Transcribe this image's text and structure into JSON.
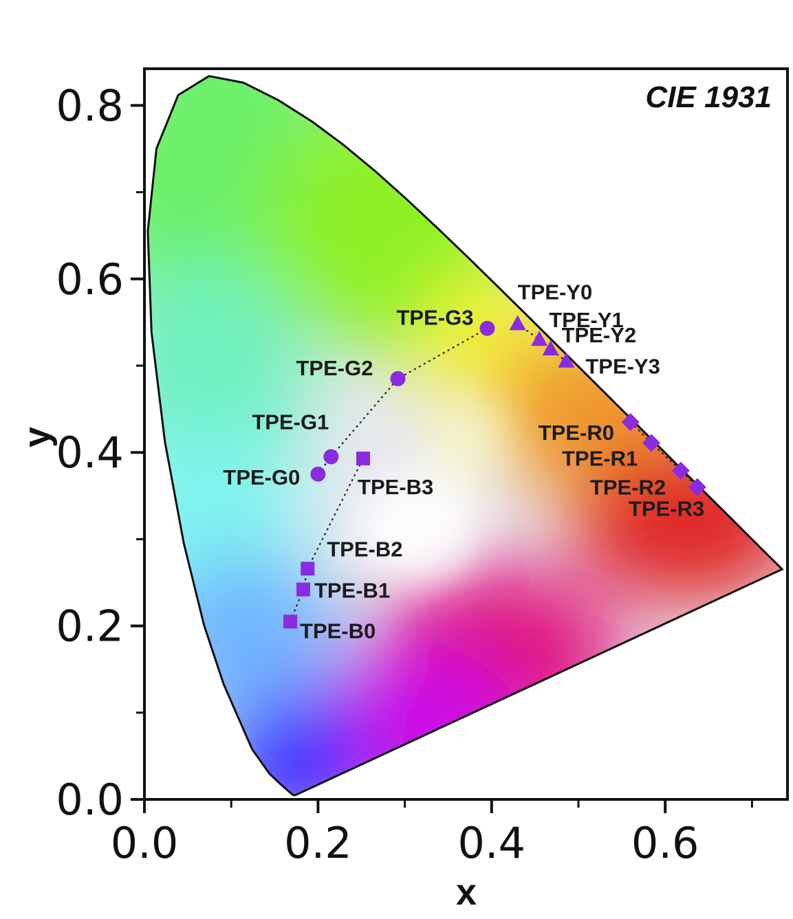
{
  "chart_data": {
    "type": "scatter",
    "title": "CIE 1931",
    "xlabel": "x",
    "ylabel": "y",
    "xlim": [
      0.0,
      0.74
    ],
    "ylim": [
      0.0,
      0.84
    ],
    "x_ticks": [
      "0.0",
      "0.2",
      "0.4",
      "0.6"
    ],
    "y_ticks": [
      "0.0",
      "0.2",
      "0.4",
      "0.6",
      "0.8"
    ],
    "grid": false,
    "marker_color": "#8a2be2",
    "series": [
      {
        "marker": "circle",
        "points": [
          {
            "label": "TPE-G0",
            "x": 0.2,
            "y": 0.375
          },
          {
            "label": "TPE-G1",
            "x": 0.215,
            "y": 0.395
          },
          {
            "label": "TPE-G2",
            "x": 0.292,
            "y": 0.485
          },
          {
            "label": "TPE-G3",
            "x": 0.395,
            "y": 0.543
          }
        ]
      },
      {
        "marker": "square",
        "points": [
          {
            "label": "TPE-B0",
            "x": 0.168,
            "y": 0.205
          },
          {
            "label": "TPE-B1",
            "x": 0.183,
            "y": 0.242
          },
          {
            "label": "TPE-B2",
            "x": 0.188,
            "y": 0.266
          },
          {
            "label": "TPE-B3",
            "x": 0.252,
            "y": 0.393
          }
        ]
      },
      {
        "marker": "triangle",
        "points": [
          {
            "label": "TPE-Y0",
            "x": 0.43,
            "y": 0.548
          },
          {
            "label": "TPE-Y1",
            "x": 0.455,
            "y": 0.53
          },
          {
            "label": "TPE-Y2",
            "x": 0.468,
            "y": 0.519
          },
          {
            "label": "TPE-Y3",
            "x": 0.486,
            "y": 0.505
          }
        ]
      },
      {
        "marker": "diamond",
        "points": [
          {
            "label": "TPE-R0",
            "x": 0.56,
            "y": 0.435
          },
          {
            "label": "TPE-R1",
            "x": 0.584,
            "y": 0.411
          },
          {
            "label": "TPE-R2",
            "x": 0.618,
            "y": 0.379
          },
          {
            "label": "TPE-R3",
            "x": 0.637,
            "y": 0.36
          }
        ]
      }
    ]
  }
}
